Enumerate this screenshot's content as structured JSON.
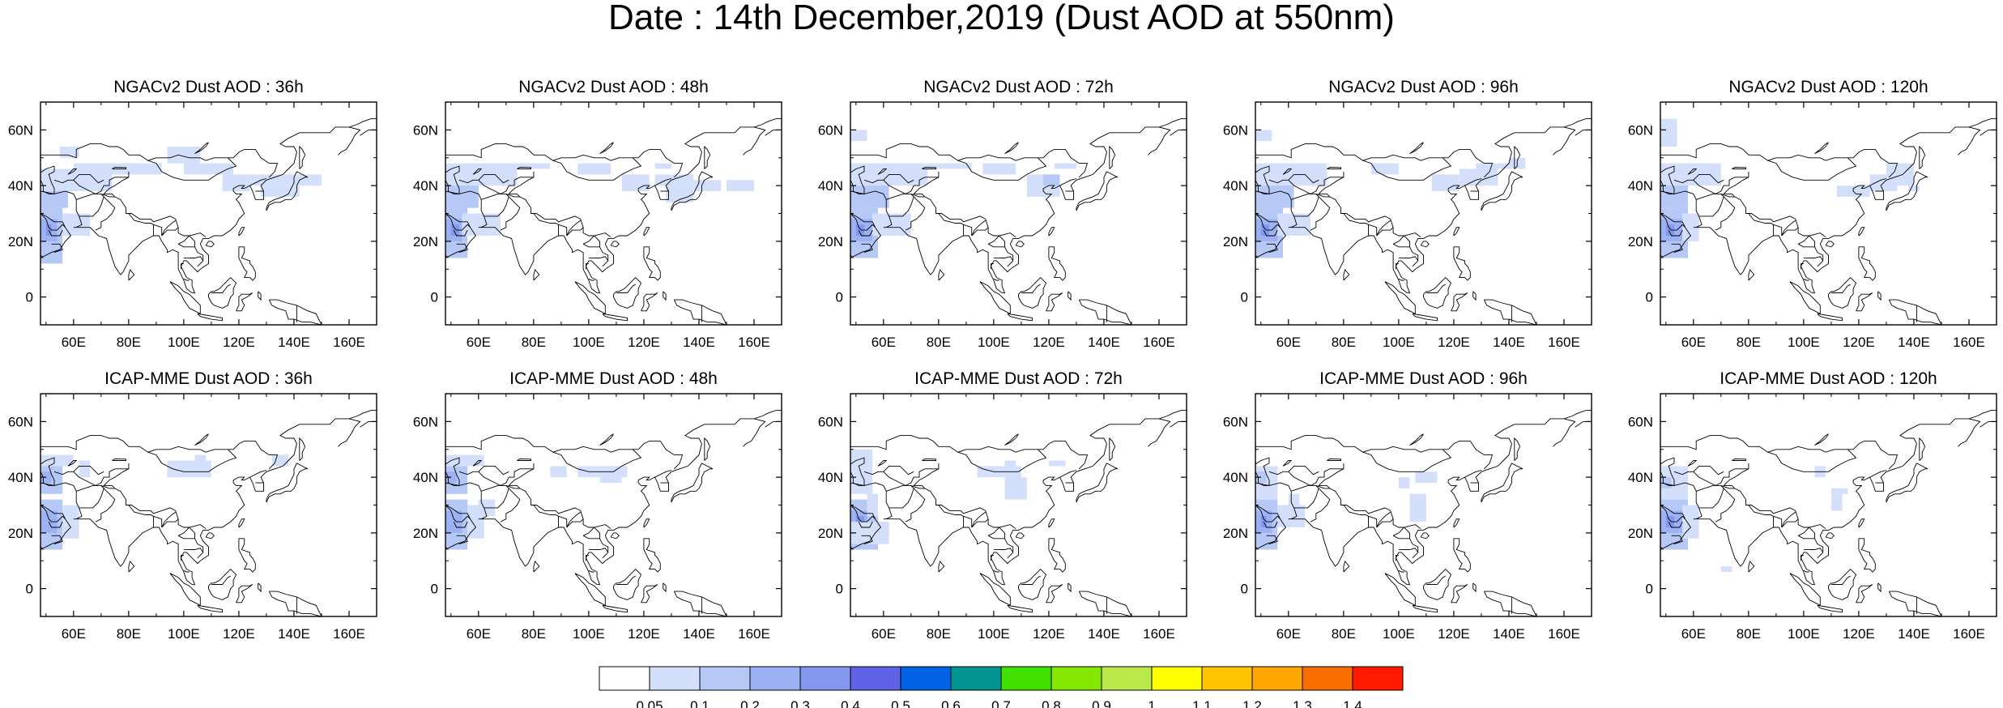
{
  "title": "Date : 14th December,2019 (Dust AOD at 550nm)",
  "panels": [
    {
      "title": "NGACv2 Dust AOD : 36h",
      "model": "NGACv2",
      "lead": "36h"
    },
    {
      "title": "NGACv2 Dust AOD : 48h",
      "model": "NGACv2",
      "lead": "48h"
    },
    {
      "title": "NGACv2 Dust AOD : 72h",
      "model": "NGACv2",
      "lead": "72h"
    },
    {
      "title": "NGACv2 Dust AOD : 96h",
      "model": "NGACv2",
      "lead": "96h"
    },
    {
      "title": "NGACv2 Dust AOD : 120h",
      "model": "NGACv2",
      "lead": "120h"
    },
    {
      "title": "ICAP-MME Dust AOD : 36h",
      "model": "ICAP-MME",
      "lead": "36h"
    },
    {
      "title": "ICAP-MME Dust AOD : 48h",
      "model": "ICAP-MME",
      "lead": "48h"
    },
    {
      "title": "ICAP-MME Dust AOD : 72h",
      "model": "ICAP-MME",
      "lead": "72h"
    },
    {
      "title": "ICAP-MME Dust AOD : 96h",
      "model": "ICAP-MME",
      "lead": "96h"
    },
    {
      "title": "ICAP-MME Dust AOD : 120h",
      "model": "ICAP-MME",
      "lead": "120h"
    }
  ],
  "map": {
    "lon_range": [
      48,
      170
    ],
    "lat_range": [
      -10,
      70
    ],
    "lon_ticks": [
      "60E",
      "80E",
      "100E",
      "120E",
      "140E",
      "160E"
    ],
    "lat_ticks": [
      "60N",
      "40N",
      "20N",
      "0"
    ]
  },
  "colorbar": {
    "labels": [
      "0.05",
      "0.1",
      "0.2",
      "0.3",
      "0.4",
      "0.5",
      "0.6",
      "0.7",
      "0.8",
      "0.9",
      "1",
      "1.1",
      "1.2",
      "1.3",
      "1.4"
    ],
    "colors": [
      "#ffffff",
      "#d4e0fb",
      "#b6c8f6",
      "#9cb2f3",
      "#8497ee",
      "#5f62e5",
      "#0063e6",
      "#00958f",
      "#3fe000",
      "#85e600",
      "#bbe94c",
      "#ffff00",
      "#ffc400",
      "#ffa700",
      "#f86e00",
      "#ff1a00"
    ]
  }
}
